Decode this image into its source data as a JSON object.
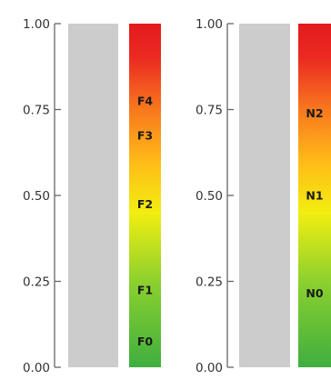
{
  "colors": {
    "background": "#ffffff",
    "axis": "#666666",
    "placeholder_bar": "#cccccc",
    "gradient_stops": [
      {
        "value": 0.0,
        "color": "#3fae3f"
      },
      {
        "value": 0.25,
        "color": "#8cd12e"
      },
      {
        "value": 0.45,
        "color": "#f2ee10"
      },
      {
        "value": 0.6,
        "color": "#ffba18"
      },
      {
        "value": 0.75,
        "color": "#f8781e"
      },
      {
        "value": 0.9,
        "color": "#eb2a22"
      },
      {
        "value": 1.0,
        "color": "#e31a1c"
      }
    ]
  },
  "chart_data": [
    {
      "type": "bar",
      "ylim": [
        0,
        1
      ],
      "yticks": [
        "0.00",
        "0.25",
        "0.50",
        "0.75",
        "1.00"
      ],
      "ytick_values": [
        0,
        0.25,
        0.5,
        0.75,
        1
      ],
      "bars": [
        {
          "kind": "placeholder",
          "value": 1.0
        },
        {
          "kind": "gradient-scale",
          "value": 1.0
        }
      ],
      "stage_labels": [
        {
          "text": "F0",
          "value": 0.075
        },
        {
          "text": "F1",
          "value": 0.225
        },
        {
          "text": "F2",
          "value": 0.475
        },
        {
          "text": "F3",
          "value": 0.675
        },
        {
          "text": "F4",
          "value": 0.775
        }
      ]
    },
    {
      "type": "bar",
      "ylim": [
        0,
        1
      ],
      "yticks": [
        "0.00",
        "0.25",
        "0.50",
        "0.75",
        "1.00"
      ],
      "ytick_values": [
        0,
        0.25,
        0.5,
        0.75,
        1
      ],
      "bars": [
        {
          "kind": "placeholder",
          "value": 1.0
        },
        {
          "kind": "gradient-scale",
          "value": 1.0
        }
      ],
      "stage_labels": [
        {
          "text": "N0",
          "value": 0.215
        },
        {
          "text": "N1",
          "value": 0.5
        },
        {
          "text": "N2",
          "value": 0.74
        }
      ]
    }
  ]
}
